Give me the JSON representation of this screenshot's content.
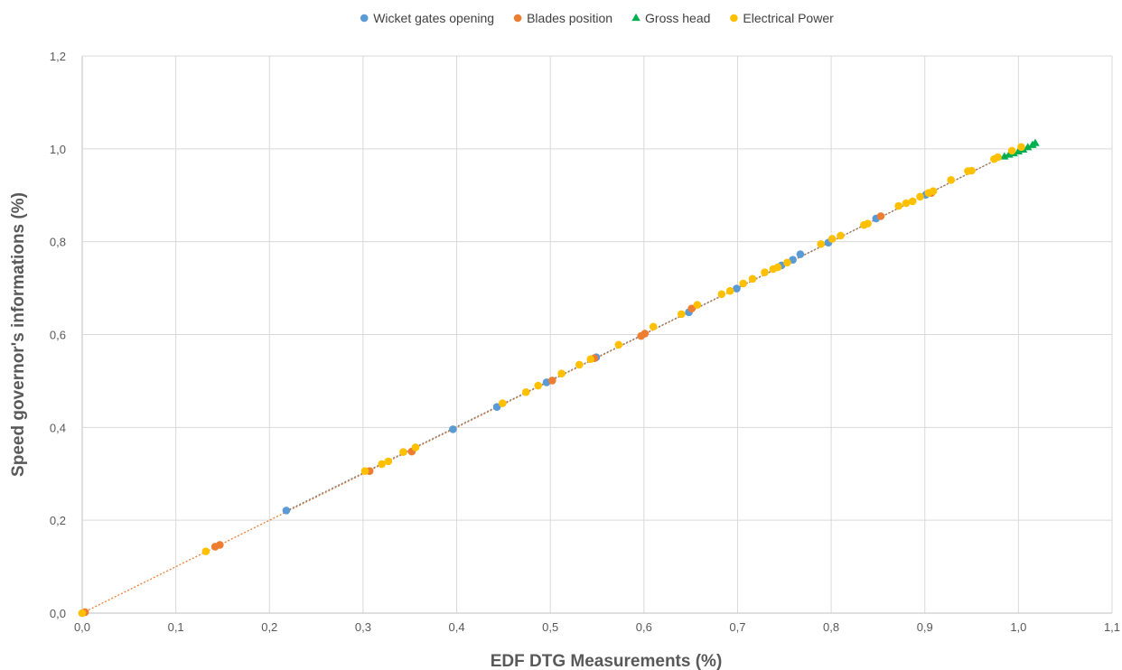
{
  "chart_data": {
    "type": "scatter",
    "title": "",
    "xlabel": "EDF DTG Measurements (%)",
    "ylabel": "Speed governor's informations (%)",
    "xlim": [
      0,
      1.1
    ],
    "ylim": [
      0,
      1.2
    ],
    "x_ticks": [
      0.0,
      0.1,
      0.2,
      0.3,
      0.4,
      0.5,
      0.6,
      0.7,
      0.8,
      0.9,
      1.0,
      1.1
    ],
    "y_ticks": [
      0.0,
      0.2,
      0.4,
      0.6,
      0.8,
      1.0,
      1.2
    ],
    "x_tick_labels": [
      "0,0",
      "0,1",
      "0,2",
      "0,3",
      "0,4",
      "0,5",
      "0,6",
      "0,7",
      "0,8",
      "0,9",
      "1,0",
      "1,1"
    ],
    "y_tick_labels": [
      "0,0",
      "0,2",
      "0,4",
      "0,6",
      "0,8",
      "1,0",
      "1,2"
    ],
    "grid": true,
    "legend_position": "top",
    "trendlines": [
      {
        "series": "Blades position",
        "color": "#ED7D31",
        "style": "dotted",
        "from": [
          0.0,
          0.0
        ],
        "to": [
          0.99,
          0.99
        ]
      },
      {
        "series": "Wicket gates opening",
        "color": "#7F7F7F",
        "style": "dotted",
        "from": [
          0.218,
          0.22
        ],
        "to": [
          0.99,
          0.99
        ]
      }
    ],
    "series": [
      {
        "name": "Wicket gates opening",
        "color": "#5B9BD5",
        "marker": "circle",
        "points": [
          [
            0.0,
            0.0
          ],
          [
            0.218,
            0.221
          ],
          [
            0.396,
            0.396
          ],
          [
            0.443,
            0.444
          ],
          [
            0.496,
            0.497
          ],
          [
            0.549,
            0.551
          ],
          [
            0.648,
            0.648
          ],
          [
            0.699,
            0.699
          ],
          [
            0.747,
            0.749
          ],
          [
            0.759,
            0.761
          ],
          [
            0.767,
            0.773
          ],
          [
            0.797,
            0.798
          ],
          [
            0.848,
            0.85
          ],
          [
            0.901,
            0.901
          ]
        ]
      },
      {
        "name": "Blades position",
        "color": "#ED7D31",
        "marker": "circle",
        "points": [
          [
            0.003,
            0.002
          ],
          [
            0.142,
            0.143
          ],
          [
            0.147,
            0.147
          ],
          [
            0.307,
            0.306
          ],
          [
            0.352,
            0.348
          ],
          [
            0.502,
            0.501
          ],
          [
            0.547,
            0.549
          ],
          [
            0.597,
            0.597
          ],
          [
            0.601,
            0.602
          ],
          [
            0.651,
            0.656
          ],
          [
            0.853,
            0.855
          ],
          [
            0.907,
            0.905
          ]
        ]
      },
      {
        "name": "Gross head",
        "color": "#00B050",
        "marker": "triangle",
        "points": [
          [
            0.985,
            0.983
          ],
          [
            0.99,
            0.987
          ],
          [
            0.995,
            0.99
          ],
          [
            1.0,
            0.994
          ],
          [
            1.005,
            0.998
          ],
          [
            1.01,
            1.003
          ],
          [
            1.015,
            1.008
          ],
          [
            1.018,
            1.012
          ]
        ]
      },
      {
        "name": "Electrical Power",
        "color": "#FFC000",
        "marker": "circle",
        "points": [
          [
            0.0,
            0.0
          ],
          [
            0.132,
            0.133
          ],
          [
            0.302,
            0.306
          ],
          [
            0.32,
            0.321
          ],
          [
            0.327,
            0.327
          ],
          [
            0.343,
            0.347
          ],
          [
            0.356,
            0.357
          ],
          [
            0.449,
            0.452
          ],
          [
            0.474,
            0.476
          ],
          [
            0.487,
            0.49
          ],
          [
            0.512,
            0.516
          ],
          [
            0.531,
            0.535
          ],
          [
            0.543,
            0.547
          ],
          [
            0.573,
            0.578
          ],
          [
            0.61,
            0.617
          ],
          [
            0.64,
            0.644
          ],
          [
            0.657,
            0.664
          ],
          [
            0.683,
            0.687
          ],
          [
            0.692,
            0.694
          ],
          [
            0.706,
            0.71
          ],
          [
            0.716,
            0.72
          ],
          [
            0.729,
            0.734
          ],
          [
            0.738,
            0.741
          ],
          [
            0.743,
            0.745
          ],
          [
            0.753,
            0.755
          ],
          [
            0.789,
            0.795
          ],
          [
            0.801,
            0.806
          ],
          [
            0.81,
            0.813
          ],
          [
            0.835,
            0.836
          ],
          [
            0.839,
            0.839
          ],
          [
            0.872,
            0.877
          ],
          [
            0.88,
            0.883
          ],
          [
            0.887,
            0.887
          ],
          [
            0.895,
            0.897
          ],
          [
            0.904,
            0.905
          ],
          [
            0.909,
            0.909
          ],
          [
            0.928,
            0.933
          ],
          [
            0.946,
            0.952
          ],
          [
            0.95,
            0.953
          ],
          [
            0.974,
            0.978
          ],
          [
            0.978,
            0.982
          ],
          [
            0.993,
            0.996
          ],
          [
            1.003,
            1.004
          ]
        ]
      }
    ]
  }
}
